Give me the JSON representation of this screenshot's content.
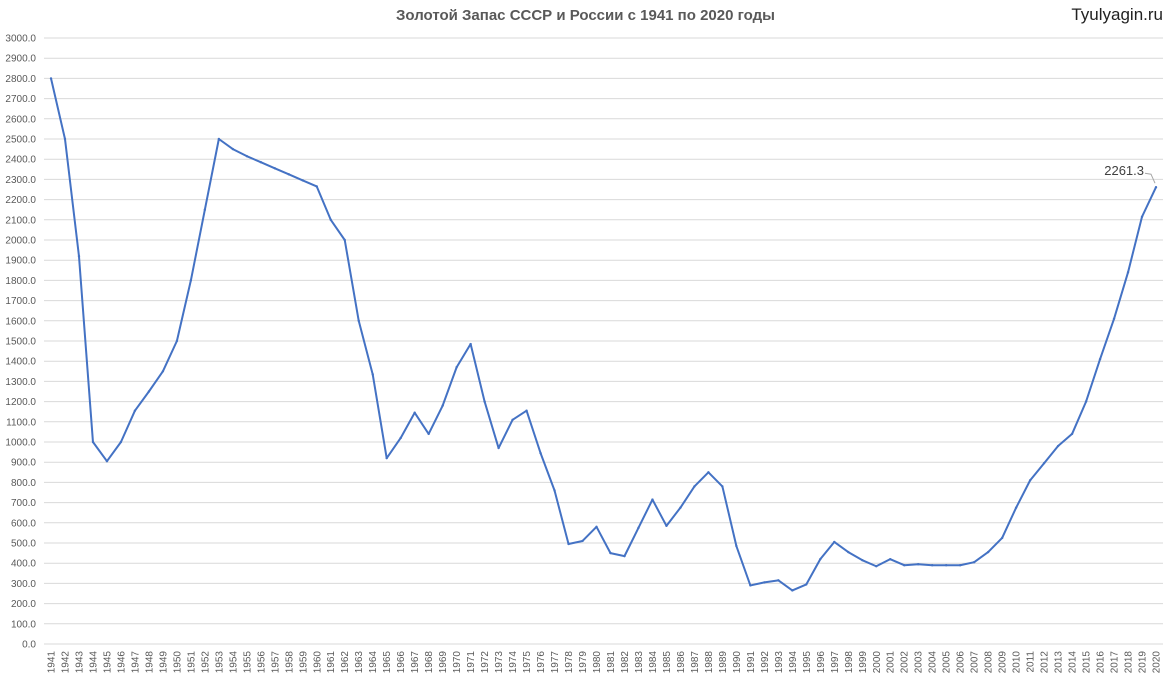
{
  "title": "Золотой Запас СССР и России с 1941 по 2020 годы",
  "watermark": "Tyulyagin.ru",
  "colors": {
    "line": "#4472c4",
    "grid": "#d9d9d9",
    "text": "#595959"
  },
  "chart_data": {
    "type": "line",
    "title": "Золотой Запас СССР и России с 1941 по 2020 годы",
    "xlabel": "",
    "ylabel": "",
    "ylim": [
      0,
      3000
    ],
    "y_tick_step": 100,
    "y_tick_format": "0.0",
    "grid": true,
    "legend": false,
    "x": [
      1941,
      1942,
      1943,
      1944,
      1945,
      1946,
      1947,
      1948,
      1949,
      1950,
      1951,
      1952,
      1953,
      1954,
      1955,
      1956,
      1957,
      1958,
      1959,
      1960,
      1961,
      1962,
      1963,
      1964,
      1965,
      1966,
      1967,
      1968,
      1969,
      1970,
      1971,
      1972,
      1973,
      1974,
      1975,
      1976,
      1977,
      1978,
      1979,
      1980,
      1981,
      1982,
      1983,
      1984,
      1985,
      1986,
      1987,
      1988,
      1989,
      1990,
      1991,
      1992,
      1993,
      1994,
      1995,
      1996,
      1997,
      1998,
      1999,
      2000,
      2001,
      2002,
      2003,
      2004,
      2005,
      2006,
      2007,
      2008,
      2009,
      2010,
      2011,
      2012,
      2013,
      2014,
      2015,
      2016,
      2017,
      2018,
      2019,
      2020
    ],
    "series": [
      {
        "name": "",
        "values": [
          2800,
          2500,
          1920,
          1000,
          905,
          1000,
          1155,
          1250,
          1350,
          1500,
          1800,
          2150,
          2500,
          2450,
          2415,
          2385,
          2355,
          2325,
          2295,
          2265,
          2100,
          2000,
          1600,
          1335,
          920,
          1020,
          1145,
          1040,
          1180,
          1370,
          1485,
          1200,
          970,
          1110,
          1155,
          945,
          760,
          495,
          510,
          580,
          450,
          435,
          575,
          715,
          585,
          675,
          780,
          850,
          780,
          485,
          290,
          305,
          315,
          265,
          295,
          420,
          505,
          455,
          415,
          385,
          420,
          390,
          395,
          390,
          390,
          390,
          405,
          455,
          525,
          675,
          810,
          895,
          980,
          1040,
          1200,
          1410,
          1610,
          1840,
          2115,
          2261.3
        ]
      }
    ],
    "annotations": [
      {
        "x": 2020,
        "text": "2261.3"
      }
    ]
  }
}
